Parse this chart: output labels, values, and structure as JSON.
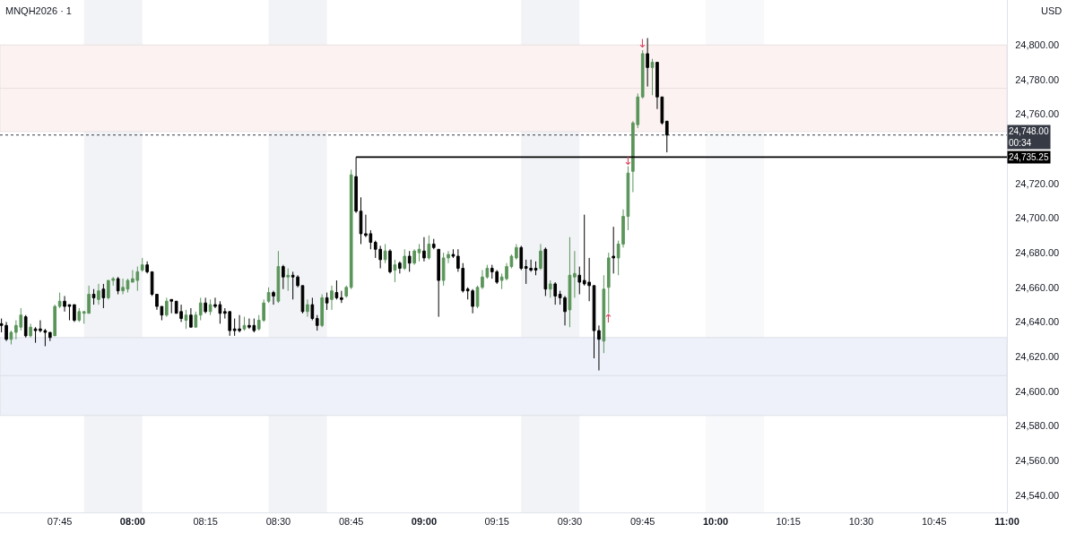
{
  "chart_data": {
    "type": "candlestick",
    "title": "MNQH2026 · 1",
    "ylabel": "USD",
    "x": [
      7.55,
      7.5667,
      7.5833,
      7.6,
      7.6167,
      7.6333,
      7.65,
      7.6667,
      7.6833,
      7.7,
      7.7167,
      7.7333,
      7.75,
      7.7667,
      7.7833,
      7.8,
      7.8167,
      7.8333,
      7.85,
      7.8667,
      7.8833,
      7.9,
      7.9167,
      7.9333,
      7.95,
      7.9667,
      7.9833,
      8,
      8.0167,
      8.0333,
      8.05,
      8.0667,
      8.0833,
      8.1,
      8.1167,
      8.1333,
      8.15,
      8.1667,
      8.1833,
      8.2,
      8.2167,
      8.2333,
      8.25,
      8.2667,
      8.2833,
      8.3,
      8.3167,
      8.3333,
      8.35,
      8.3667,
      8.3833,
      8.4,
      8.4167,
      8.4333,
      8.45,
      8.4667,
      8.4833,
      8.5,
      8.5167,
      8.5333,
      8.55,
      8.5667,
      8.5833,
      8.6,
      8.6167,
      8.6333,
      8.65,
      8.6667,
      8.6833,
      8.7,
      8.7167,
      8.7333,
      8.75,
      8.7667,
      8.7833,
      8.8,
      8.8167,
      8.8333,
      8.85,
      8.8667,
      8.8833,
      8.9,
      8.9167,
      8.9333,
      8.95,
      8.9667,
      8.9833,
      9,
      9.0167,
      9.0333,
      9.05,
      9.0667,
      9.0833,
      9.1,
      9.1167,
      9.1333,
      9.15,
      9.1667,
      9.1833,
      9.2,
      9.2167,
      9.2333,
      9.25,
      9.2667,
      9.2833,
      9.3,
      9.3167,
      9.3333,
      9.35,
      9.3667,
      9.3833,
      9.4,
      9.4167,
      9.4333,
      9.45,
      9.4667,
      9.4833,
      9.5,
      9.5167,
      9.5333,
      9.55,
      9.5667,
      9.5833,
      9.6,
      9.6167,
      9.6333,
      9.65,
      9.6667,
      9.6833,
      9.7,
      9.7167,
      9.7333,
      9.75,
      9.7667,
      9.7833,
      9.8,
      9.8167,
      9.8333
    ],
    "ohlc": [
      [
        24639,
        24642,
        24634,
        24638
      ],
      [
        24638,
        24640,
        24629,
        24630
      ],
      [
        24630,
        24635,
        24627,
        24634
      ],
      [
        24634,
        24641,
        24630,
        24638
      ],
      [
        24637,
        24648,
        24635,
        24644
      ],
      [
        24643,
        24644,
        24631,
        24632
      ],
      [
        24632,
        24639,
        24631,
        24637
      ],
      [
        24636,
        24637,
        24628,
        24635
      ],
      [
        24636,
        24641,
        24634,
        24635
      ],
      [
        24635,
        24636,
        24626,
        24634
      ],
      [
        24634,
        24634,
        24629,
        24631
      ],
      [
        24632,
        24650,
        24632,
        24649
      ],
      [
        24649,
        24657,
        24648,
        24652
      ],
      [
        24652,
        24655,
        24646,
        24649
      ],
      [
        24650,
        24650,
        24641,
        24649
      ],
      [
        24650,
        24650,
        24640,
        24641
      ],
      [
        24641,
        24648,
        24640,
        24646
      ],
      [
        24645,
        24646,
        24639,
        24646
      ],
      [
        24645,
        24661,
        24645,
        24656
      ],
      [
        24656,
        24659,
        24650,
        24654
      ],
      [
        24653,
        24662,
        24650,
        24658
      ],
      [
        24659,
        24662,
        24648,
        24654
      ],
      [
        24654,
        24664,
        24653,
        24664
      ],
      [
        24664,
        24666,
        24661,
        24665
      ],
      [
        24665,
        24666,
        24656,
        24658
      ],
      [
        24658,
        24665,
        24656,
        24660
      ],
      [
        24659,
        24665,
        24657,
        24664
      ],
      [
        24663,
        24670,
        24663,
        24665
      ],
      [
        24664,
        24672,
        24658,
        24669
      ],
      [
        24670,
        24677,
        24669,
        24673
      ],
      [
        24673,
        24675,
        24668,
        24669
      ],
      [
        24669,
        24669,
        24655,
        24656
      ],
      [
        24656,
        24656,
        24647,
        24649
      ],
      [
        24649,
        24649,
        24641,
        24644
      ],
      [
        24644,
        24654,
        24643,
        24652
      ],
      [
        24653,
        24653,
        24645,
        24652
      ],
      [
        24652,
        24652,
        24645,
        24645
      ],
      [
        24646,
        24650,
        24640,
        24642
      ],
      [
        24641,
        24647,
        24636,
        24644
      ],
      [
        24644,
        24648,
        24637,
        24637
      ],
      [
        24637,
        24646,
        24637,
        24644
      ],
      [
        24644,
        24654,
        24641,
        24651
      ],
      [
        24651,
        24654,
        24645,
        24646
      ],
      [
        24646,
        24653,
        24644,
        24650
      ],
      [
        24650,
        24654,
        24648,
        24649
      ],
      [
        24650,
        24652,
        24639,
        24645
      ],
      [
        24646,
        24648,
        24642,
        24645
      ],
      [
        24646,
        24646,
        24632,
        24635
      ],
      [
        24636,
        24642,
        24632,
        24635
      ],
      [
        24636,
        24644,
        24634,
        24635
      ],
      [
        24636,
        24643,
        24635,
        24638
      ],
      [
        24638,
        24642,
        24636,
        24637
      ],
      [
        24638,
        24642,
        24634,
        24635
      ],
      [
        24636,
        24644,
        24635,
        24641
      ],
      [
        24641,
        24653,
        24640,
        24651
      ],
      [
        24652,
        24660,
        24651,
        24657
      ],
      [
        24657,
        24658,
        24650,
        24655
      ],
      [
        24652,
        24681,
        24651,
        24672
      ],
      [
        24672,
        24673,
        24659,
        24666
      ],
      [
        24666,
        24671,
        24658,
        24667
      ],
      [
        24667,
        24669,
        24653,
        24666
      ],
      [
        24666,
        24667,
        24660,
        24661
      ],
      [
        24661,
        24661,
        24645,
        24646
      ],
      [
        24646,
        24653,
        24643,
        24650
      ],
      [
        24650,
        24654,
        24641,
        24642
      ],
      [
        24642,
        24644,
        24635,
        24638
      ],
      [
        24638,
        24656,
        24637,
        24654
      ],
      [
        24654,
        24657,
        24647,
        24651
      ],
      [
        24653,
        24661,
        24647,
        24658
      ],
      [
        24657,
        24664,
        24653,
        24654
      ],
      [
        24654,
        24658,
        24651,
        24653
      ],
      [
        24655,
        24661,
        24654,
        24660
      ],
      [
        24660,
        24728,
        24659,
        24725
      ],
      [
        24724,
        24735.25,
        24703,
        24704
      ],
      [
        24704,
        24712,
        24685,
        24691
      ],
      [
        24691,
        24702,
        24689,
        24690
      ],
      [
        24691,
        24693,
        24682,
        24686
      ],
      [
        24686,
        24687,
        24677,
        24682
      ],
      [
        24682,
        24684,
        24671,
        24676
      ],
      [
        24676,
        24685,
        24674,
        24681
      ],
      [
        24681,
        24682,
        24668,
        24669
      ],
      [
        24670,
        24676,
        24663,
        24673
      ],
      [
        24674,
        24675,
        24668,
        24671
      ],
      [
        24671,
        24682,
        24670,
        24678
      ],
      [
        24678,
        24681,
        24669,
        24674
      ],
      [
        24674,
        24682,
        24673,
        24681
      ],
      [
        24680,
        24685,
        24675,
        24682
      ],
      [
        24681,
        24689,
        24675,
        24677
      ],
      [
        24677,
        24690,
        24676,
        24685
      ],
      [
        24685,
        24688,
        24682,
        24683
      ],
      [
        24682,
        24682,
        24643,
        24664
      ],
      [
        24664,
        24680,
        24661,
        24677
      ],
      [
        24677,
        24681,
        24674,
        24679
      ],
      [
        24679,
        24682,
        24677,
        24678
      ],
      [
        24678,
        24682,
        24669,
        24671
      ],
      [
        24671,
        24674,
        24657,
        24658
      ],
      [
        24659,
        24660,
        24653,
        24658
      ],
      [
        24658,
        24659,
        24645,
        24649
      ],
      [
        24649,
        24661,
        24648,
        24660
      ],
      [
        24660,
        24670,
        24659,
        24666
      ],
      [
        24666,
        24673,
        24665,
        24671
      ],
      [
        24671,
        24673,
        24665,
        24669
      ],
      [
        24669,
        24670,
        24662,
        24663
      ],
      [
        24664,
        24668,
        24659,
        24666
      ],
      [
        24665,
        24674,
        24664,
        24672
      ],
      [
        24672,
        24679,
        24671,
        24678
      ],
      [
        24677,
        24685,
        24676,
        24683
      ],
      [
        24683,
        24684,
        24670,
        24671
      ],
      [
        24672,
        24676,
        24662,
        24671
      ],
      [
        24671,
        24676,
        24669,
        24670
      ],
      [
        24671,
        24675,
        24667,
        24670
      ],
      [
        24671,
        24685,
        24670,
        24681
      ],
      [
        24682,
        24683,
        24655,
        24659
      ],
      [
        24659,
        24664,
        24654,
        24662
      ],
      [
        24662,
        24663,
        24650,
        24655
      ],
      [
        24656,
        24658,
        24650,
        24654
      ],
      [
        24654,
        24655,
        24638,
        24646
      ],
      [
        24647,
        24689,
        24637,
        24667
      ],
      [
        24666,
        24681,
        24654,
        24668
      ],
      [
        24667,
        24672,
        24656,
        24663
      ],
      [
        24664,
        24702,
        24661,
        24662
      ],
      [
        24663,
        24677,
        24652,
        24661
      ],
      [
        24661,
        24661,
        24619,
        24635
      ],
      [
        24635,
        24638,
        24612,
        24630
      ],
      [
        24629,
        24667,
        24622,
        24659
      ],
      [
        24660,
        24680,
        24645,
        24677
      ],
      [
        24678,
        24695,
        24668,
        24677
      ],
      [
        24677,
        24687,
        24667,
        24685
      ],
      [
        24685,
        24705,
        24683,
        24701
      ],
      [
        24701,
        24730,
        24693,
        24726
      ],
      [
        24727,
        24756,
        24715,
        24755
      ],
      [
        24754,
        24772,
        24752,
        24770
      ],
      [
        24770,
        24797,
        24769,
        24795
      ],
      [
        24795,
        24804,
        24776,
        24787
      ],
      [
        24787,
        24792,
        24771,
        24790
      ],
      [
        24790,
        24790,
        24763,
        24770
      ],
      [
        24770,
        24770,
        24754,
        24755
      ],
      [
        24756,
        24756,
        24738,
        24748
      ]
    ],
    "colors": [
      "#000000",
      "#000000",
      "#5a955a",
      "#5a955a",
      "#5a955a",
      "#000000",
      "#5a955a",
      "#000000",
      "#000000",
      "#000000",
      "#000000",
      "#5a955a",
      "#5a955a",
      "#000000",
      "#000000",
      "#000000",
      "#5a955a",
      "#5a955a",
      "#5a955a",
      "#000000",
      "#5a955a",
      "#000000",
      "#5a955a",
      "#5a955a",
      "#000000",
      "#5a955a",
      "#5a955a",
      "#5a955a",
      "#5a955a",
      "#5a955a",
      "#000000",
      "#000000",
      "#000000",
      "#000000",
      "#5a955a",
      "#000000",
      "#000000",
      "#000000",
      "#5a955a",
      "#000000",
      "#5a955a",
      "#5a955a",
      "#000000",
      "#5a955a",
      "#000000",
      "#000000",
      "#000000",
      "#000000",
      "#000000",
      "#000000",
      "#5a955a",
      "#000000",
      "#000000",
      "#5a955a",
      "#5a955a",
      "#5a955a",
      "#000000",
      "#5a955a",
      "#000000",
      "#5a955a",
      "#000000",
      "#000000",
      "#000000",
      "#5a955a",
      "#000000",
      "#000000",
      "#5a955a",
      "#000000",
      "#5a955a",
      "#000000",
      "#000000",
      "#5a955a",
      "#5a955a",
      "#000000",
      "#000000",
      "#000000",
      "#000000",
      "#000000",
      "#000000",
      "#5a955a",
      "#000000",
      "#5a955a",
      "#000000",
      "#5a955a",
      "#000000",
      "#5a955a",
      "#5a955a",
      "#000000",
      "#5a955a",
      "#000000",
      "#000000",
      "#5a955a",
      "#5a955a",
      "#000000",
      "#000000",
      "#000000",
      "#000000",
      "#000000",
      "#5a955a",
      "#5a955a",
      "#5a955a",
      "#000000",
      "#000000",
      "#5a955a",
      "#5a955a",
      "#5a955a",
      "#5a955a",
      "#000000",
      "#000000",
      "#000000",
      "#000000",
      "#5a955a",
      "#000000",
      "#5a955a",
      "#000000",
      "#000000",
      "#000000",
      "#5a955a",
      "#5a955a",
      "#000000",
      "#000000",
      "#000000",
      "#000000",
      "#000000",
      "#5a955a",
      "#5a955a",
      "#000000",
      "#5a955a",
      "#5a955a",
      "#5a955a",
      "#5a955a",
      "#5a955a",
      "#5a955a",
      "#000000",
      "#5a955a",
      "#000000",
      "#000000",
      "#000000"
    ],
    "series": [
      {
        "type": "line",
        "x": [
          8.7667,
          11
        ],
        "values": [
          24735.25,
          24735.25
        ],
        "color": "#000000"
      }
    ],
    "xlim": [
      7.545,
      11
    ],
    "ylim": [
      24530,
      24826
    ],
    "xticks": [
      {
        "value": 7.75,
        "label": "07:45"
      },
      {
        "value": 8,
        "label": "08:00"
      },
      {
        "value": 8.25,
        "label": "08:15"
      },
      {
        "value": 8.5,
        "label": "08:30"
      },
      {
        "value": 8.75,
        "label": "08:45"
      },
      {
        "value": 9,
        "label": "09:00"
      },
      {
        "value": 9.25,
        "label": "09:15"
      },
      {
        "value": 9.5,
        "label": "09:30"
      },
      {
        "value": 9.75,
        "label": "09:45"
      },
      {
        "value": 10,
        "label": "10:00"
      },
      {
        "value": 10.25,
        "label": "10:15"
      },
      {
        "value": 10.5,
        "label": "10:30"
      },
      {
        "value": 10.75,
        "label": "10:45"
      },
      {
        "value": 11,
        "label": "11:00"
      }
    ],
    "yticks": [
      {
        "value": 24540,
        "label": "24,540.00"
      },
      {
        "value": 24560,
        "label": "24,560.00"
      },
      {
        "value": 24580,
        "label": "24,580.00"
      },
      {
        "value": 24600,
        "label": "24,600.00"
      },
      {
        "value": 24620,
        "label": "24,620.00"
      },
      {
        "value": 24640,
        "label": "24,640.00"
      },
      {
        "value": 24660,
        "label": "24,660.00"
      },
      {
        "value": 24680,
        "label": "24,680.00"
      },
      {
        "value": 24700,
        "label": "24,700.00"
      },
      {
        "value": 24720,
        "label": "24,720.00"
      },
      {
        "value": 24760,
        "label": "24,760.00"
      },
      {
        "value": 24780,
        "label": "24,780.00"
      },
      {
        "value": 24800,
        "label": "24,800.00"
      }
    ],
    "bands": [
      {
        "axis": "x",
        "from": 7.8333,
        "to": 8.0333,
        "color": "#f2f3f6"
      },
      {
        "axis": "x",
        "from": 8.4667,
        "to": 8.6667,
        "color": "#f2f3f6"
      },
      {
        "axis": "x",
        "from": 9.3333,
        "to": 9.5333,
        "color": "#f2f3f6"
      },
      {
        "axis": "x",
        "from": 9.9667,
        "to": 10.1667,
        "color": "#f8f9fb"
      },
      {
        "axis": "y",
        "from": 24775,
        "to": 24800,
        "color": "#fcf2f2"
      },
      {
        "axis": "y",
        "from": 24750,
        "to": 24775,
        "color": "#fcf2f2"
      },
      {
        "axis": "y",
        "from": 24609,
        "to": 24631,
        "color": "#eef1f9"
      },
      {
        "axis": "y",
        "from": 24586,
        "to": 24609,
        "color": "#eef1f9"
      }
    ],
    "ref_lines": [
      {
        "axis": "y",
        "value": 24748,
        "label": "24,748.00\n00:34",
        "color": "#363a45",
        "line_style": "dotted"
      }
    ],
    "annotations": [
      {
        "text": "24,735.25",
        "x": 11,
        "y": 24735.25
      },
      {
        "text": "↓",
        "x": 9.75,
        "y": 24801
      },
      {
        "text": "↓",
        "x": 9.7,
        "y": 24733
      },
      {
        "text": "↑",
        "x": 9.6333,
        "y": 24642
      }
    ]
  }
}
